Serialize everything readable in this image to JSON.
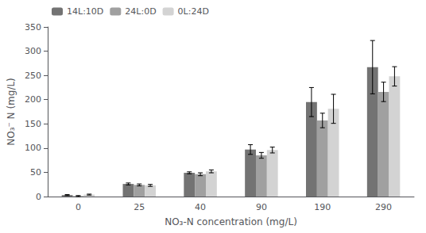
{
  "chart_data": {
    "type": "bar",
    "categories": [
      0,
      25,
      40,
      90,
      190,
      290
    ],
    "series": [
      {
        "name": "14L:10D",
        "color": "#737373",
        "values": [
          3,
          26,
          49,
          97,
          195,
          267
        ],
        "errors": [
          1,
          2,
          2,
          10,
          30,
          55
        ]
      },
      {
        "name": "24L:0D",
        "color": "#a0a0a0",
        "values": [
          1,
          24,
          46,
          85,
          157,
          216
        ],
        "errors": [
          1,
          2,
          3,
          6,
          15,
          20
        ]
      },
      {
        "name": "0L:24D",
        "color": "#d3d3d3",
        "values": [
          4,
          23,
          52,
          96,
          181,
          248
        ],
        "errors": [
          1,
          2,
          3,
          6,
          30,
          20
        ]
      }
    ],
    "xlabel": "NO₃-N concentration (mg/L)",
    "ylabel": "NO₃⁻ N (mg/L)",
    "ylim": [
      0,
      350
    ],
    "yticks": [
      0,
      50,
      100,
      150,
      200,
      250,
      300,
      350
    ],
    "legend": "upper left",
    "grid": false
  }
}
